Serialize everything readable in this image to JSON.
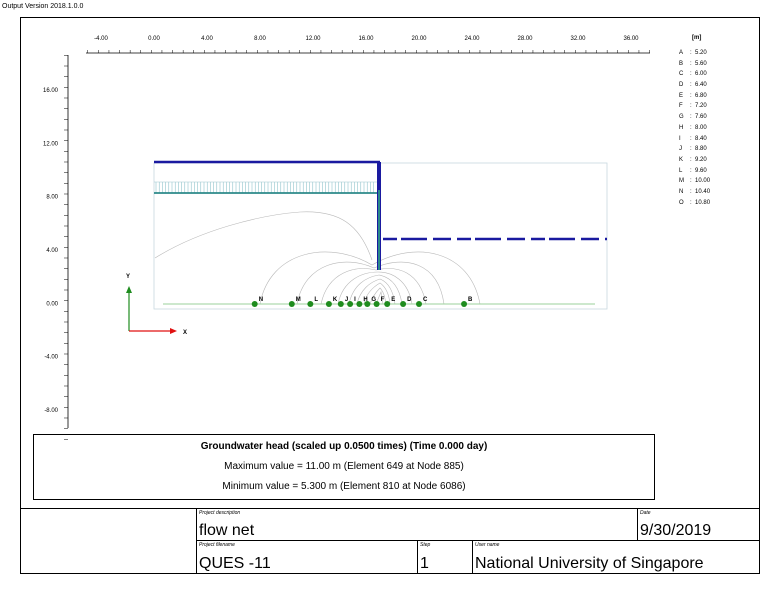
{
  "output_version": "Output Version 2018.1.0.0",
  "x_axis": {
    "unit": "[m]",
    "ticks": [
      "-4.00",
      "0.00",
      "4.00",
      "8.00",
      "12.00",
      "16.00",
      "20.00",
      "24.00",
      "28.00",
      "32.00",
      "36.00"
    ]
  },
  "y_axis": {
    "ticks": [
      "16.00",
      "12.00",
      "8.00",
      "4.00",
      "0.00",
      "-4.00",
      "-8.00"
    ]
  },
  "axes_symbol": {
    "x": "X",
    "y": "Y"
  },
  "legend": [
    {
      "key": "A",
      "value": "5.20"
    },
    {
      "key": "B",
      "value": "5.60"
    },
    {
      "key": "C",
      "value": "6.00"
    },
    {
      "key": "D",
      "value": "6.40"
    },
    {
      "key": "E",
      "value": "6.80"
    },
    {
      "key": "F",
      "value": "7.20"
    },
    {
      "key": "G",
      "value": "7.60"
    },
    {
      "key": "H",
      "value": "8.00"
    },
    {
      "key": "I",
      "value": "8.40"
    },
    {
      "key": "J",
      "value": "8.80"
    },
    {
      "key": "K",
      "value": "9.20"
    },
    {
      "key": "L",
      "value": "9.60"
    },
    {
      "key": "M",
      "value": "10.00"
    },
    {
      "key": "N",
      "value": "10.40"
    },
    {
      "key": "O",
      "value": "10.80"
    }
  ],
  "contour_markers": [
    {
      "label": "N",
      "x": 7.6
    },
    {
      "label": "M",
      "x": 10.4
    },
    {
      "label": "L",
      "x": 11.8
    },
    {
      "label": "K",
      "x": 13.2
    },
    {
      "label": "J",
      "x": 14.1
    },
    {
      "label": "I",
      "x": 14.8
    },
    {
      "label": "H",
      "x": 15.5
    },
    {
      "label": "G",
      "x": 16.1
    },
    {
      "label": "F",
      "x": 16.8
    },
    {
      "label": "E",
      "x": 17.6
    },
    {
      "label": "D",
      "x": 18.8
    },
    {
      "label": "C",
      "x": 20.0
    },
    {
      "label": "B",
      "x": 23.4
    }
  ],
  "result": {
    "title": "Groundwater head (scaled up 0.0500 times) (Time 0.000 day)",
    "max_line": "Maximum value = 11.00 m (Element 649 at Node 885)",
    "min_line": "Minimum value = 5.300 m (Element 810 at Node 6086)"
  },
  "title_block": {
    "project_description_label": "Project description",
    "project_description": "flow net",
    "date_label": "Date",
    "date": "9/30/2019",
    "project_filename_label": "Project filename",
    "project_filename": "QUES -11",
    "step_label": "Step",
    "step": "1",
    "user_name_label": "User name",
    "user_name": "National University of Singapore"
  },
  "colors": {
    "structure": "#1a1aa0",
    "water_level": "#2b8a8a",
    "marker": "#1e8c1e",
    "axis_arrow_x": "#e01010",
    "axis_arrow_y": "#1e8c1e",
    "flow_line": "#b0b0b0"
  }
}
